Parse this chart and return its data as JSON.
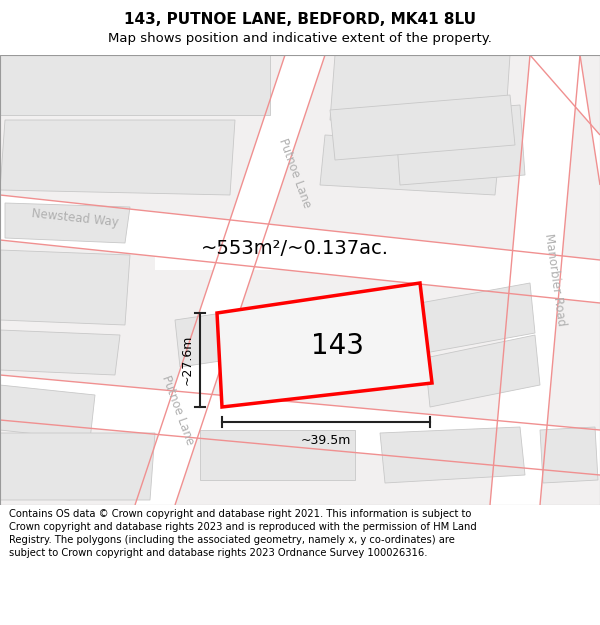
{
  "title": "143, PUTNOE LANE, BEDFORD, MK41 8LU",
  "subtitle": "Map shows position and indicative extent of the property.",
  "footer": "Contains OS data © Crown copyright and database right 2021. This information is subject to Crown copyright and database rights 2023 and is reproduced with the permission of HM Land Registry. The polygons (including the associated geometry, namely x, y co-ordinates) are subject to Crown copyright and database rights 2023 Ordnance Survey 100026316.",
  "area_label": "~553m²/~0.137ac.",
  "width_label": "~39.5m",
  "height_label": "~27.6m",
  "number_label": "143",
  "map_bg": "#f2f0f0",
  "road_fill": "#ffffff",
  "building_fill": "#e6e6e6",
  "building_edge": "#c8c8c8",
  "road_line_color": "#f09090",
  "highlight_color": "#ff0000",
  "dim_line_color": "#222222",
  "street_label_color": "#b0b0b0",
  "title_fontsize": 11,
  "subtitle_fontsize": 9.5,
  "footer_fontsize": 7.2,
  "area_fontsize": 14,
  "number_fontsize": 20,
  "dim_fontsize": 9
}
